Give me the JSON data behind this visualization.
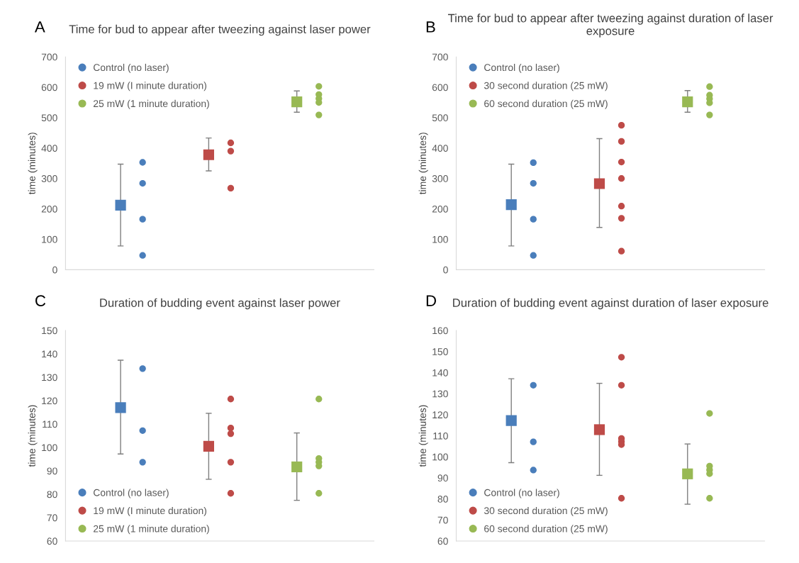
{
  "chart_data": [
    {
      "type": "scatter",
      "title": "Time for bud to appear after tweezing against laser power",
      "ylabel": "time (minutes)",
      "annotations": [
        "A"
      ],
      "categories": [
        null,
        null,
        null,
        null,
        null,
        null,
        null,
        null,
        null,
        null,
        null,
        null,
        null,
        null
      ],
      "ylim": [
        0,
        700
      ],
      "yticks": [
        0,
        100,
        200,
        300,
        400,
        500,
        600,
        700
      ],
      "tick_labels": "y",
      "legend": "top left",
      "series": [
        {
          "marker": "square",
          "colors": [
            null,
            null,
            "#4a7ebb",
            null,
            null,
            null,
            "#be4b48",
            null,
            null,
            null,
            "#98b954",
            null,
            null,
            null
          ],
          "values": [
            null,
            null,
            212,
            null,
            null,
            null,
            378,
            null,
            null,
            null,
            552,
            null,
            null,
            null
          ],
          "errors": [
            null,
            null,
            [
              78,
              347
            ],
            null,
            null,
            null,
            [
              325,
              433
            ],
            null,
            null,
            null,
            [
              518,
              588
            ],
            null,
            null,
            null
          ]
        },
        {
          "name": "Control (no laser)",
          "color": "#4a7ebb",
          "marker": "circle",
          "values": [
            null,
            null,
            null,
            353,
            null,
            null,
            null,
            null,
            null,
            null,
            null,
            null,
            null,
            null
          ]
        },
        {
          "color": "#4a7ebb",
          "marker": "circle",
          "values": [
            null,
            null,
            null,
            284,
            null,
            null,
            null,
            null,
            null,
            null,
            null,
            null,
            null,
            null
          ]
        },
        {
          "color": "#4a7ebb",
          "marker": "circle",
          "values": [
            null,
            null,
            null,
            166,
            null,
            null,
            null,
            null,
            null,
            null,
            null,
            null,
            null,
            null
          ]
        },
        {
          "color": "#4a7ebb",
          "marker": "circle",
          "values": [
            null,
            null,
            null,
            47,
            null,
            null,
            null,
            null,
            null,
            null,
            null,
            null,
            null,
            null
          ]
        },
        {
          "name": "19 mW (I minute duration)",
          "color": "#be4b48",
          "marker": "circle",
          "values": [
            null,
            null,
            null,
            null,
            null,
            null,
            null,
            417,
            null,
            null,
            null,
            null,
            null,
            null
          ]
        },
        {
          "color": "#be4b48",
          "marker": "circle",
          "values": [
            null,
            null,
            null,
            null,
            null,
            null,
            null,
            390,
            null,
            null,
            null,
            null,
            null,
            null
          ]
        },
        {
          "color": "#be4b48",
          "marker": "circle",
          "values": [
            null,
            null,
            null,
            null,
            null,
            null,
            null,
            268,
            null,
            null,
            null,
            null,
            null,
            null
          ]
        },
        {
          "name": "25 mW (1 minute duration)",
          "color": "#98b954",
          "marker": "circle",
          "values": [
            null,
            null,
            null,
            null,
            null,
            null,
            null,
            null,
            null,
            null,
            null,
            603,
            null,
            null
          ]
        },
        {
          "color": "#98b954",
          "marker": "circle",
          "values": [
            null,
            null,
            null,
            null,
            null,
            null,
            null,
            null,
            null,
            null,
            null,
            576,
            null,
            null
          ]
        },
        {
          "color": "#98b954",
          "marker": "circle",
          "values": [
            null,
            null,
            null,
            null,
            null,
            null,
            null,
            null,
            null,
            null,
            null,
            563,
            null,
            null
          ]
        },
        {
          "color": "#98b954",
          "marker": "circle",
          "values": [
            null,
            null,
            null,
            null,
            null,
            null,
            null,
            null,
            null,
            null,
            null,
            550,
            null,
            null
          ]
        },
        {
          "color": "#98b954",
          "marker": "circle",
          "values": [
            null,
            null,
            null,
            null,
            null,
            null,
            null,
            null,
            null,
            null,
            null,
            509,
            null,
            null
          ]
        }
      ]
    },
    {
      "type": "scatter",
      "title": "Time for bud to appear after tweezing against duration of laser exposure",
      "ylabel": "time (minutes)",
      "annotations": [
        "B"
      ],
      "categories": [
        null,
        null,
        null,
        null,
        null,
        null,
        null,
        null,
        null,
        null,
        null,
        null,
        null,
        null
      ],
      "ylim": [
        0,
        700
      ],
      "yticks": [
        0,
        100,
        200,
        300,
        400,
        500,
        600,
        700
      ],
      "tick_labels": "y",
      "legend": "top left",
      "series": [
        {
          "marker": "square",
          "colors": [
            null,
            null,
            "#4a7ebb",
            null,
            null,
            null,
            "#be4b48",
            null,
            null,
            null,
            "#98b954",
            null,
            null,
            null
          ],
          "values": [
            null,
            null,
            214,
            null,
            null,
            null,
            283,
            null,
            null,
            null,
            552,
            null,
            null,
            null
          ],
          "errors": [
            null,
            null,
            [
              78,
              347
            ],
            null,
            null,
            null,
            [
              139,
              431
            ],
            null,
            null,
            null,
            [
              518,
              589
            ],
            null,
            null,
            null
          ]
        },
        {
          "name": "Control (no laser)",
          "color": "#4a7ebb",
          "marker": "circle",
          "values": [
            null,
            null,
            null,
            352,
            null,
            null,
            null,
            null,
            null,
            null,
            null,
            null,
            null,
            null
          ]
        },
        {
          "color": "#4a7ebb",
          "marker": "circle",
          "values": [
            null,
            null,
            null,
            284,
            null,
            null,
            null,
            null,
            null,
            null,
            null,
            null,
            null,
            null
          ]
        },
        {
          "color": "#4a7ebb",
          "marker": "circle",
          "values": [
            null,
            null,
            null,
            166,
            null,
            null,
            null,
            null,
            null,
            null,
            null,
            null,
            null,
            null
          ]
        },
        {
          "color": "#4a7ebb",
          "marker": "circle",
          "values": [
            null,
            null,
            null,
            47,
            null,
            null,
            null,
            null,
            null,
            null,
            null,
            null,
            null,
            null
          ]
        },
        {
          "name": "30 second duration (25 mW)",
          "color": "#be4b48",
          "marker": "circle",
          "values": [
            null,
            null,
            null,
            null,
            null,
            null,
            null,
            475,
            null,
            null,
            null,
            null,
            null,
            null
          ]
        },
        {
          "color": "#be4b48",
          "marker": "circle",
          "values": [
            null,
            null,
            null,
            null,
            null,
            null,
            null,
            422,
            null,
            null,
            null,
            null,
            null,
            null
          ]
        },
        {
          "color": "#be4b48",
          "marker": "circle",
          "values": [
            null,
            null,
            null,
            null,
            null,
            null,
            null,
            354,
            null,
            null,
            null,
            null,
            null,
            null
          ]
        },
        {
          "color": "#be4b48",
          "marker": "circle",
          "values": [
            null,
            null,
            null,
            null,
            null,
            null,
            null,
            300,
            null,
            null,
            null,
            null,
            null,
            null
          ]
        },
        {
          "color": "#be4b48",
          "marker": "circle",
          "values": [
            null,
            null,
            null,
            null,
            null,
            null,
            null,
            209,
            null,
            null,
            null,
            null,
            null,
            null
          ]
        },
        {
          "color": "#be4b48",
          "marker": "circle",
          "values": [
            null,
            null,
            null,
            null,
            null,
            null,
            null,
            169,
            null,
            null,
            null,
            null,
            null,
            null
          ]
        },
        {
          "color": "#be4b48",
          "marker": "circle",
          "values": [
            null,
            null,
            null,
            null,
            null,
            null,
            null,
            61,
            null,
            null,
            null,
            null,
            null,
            null
          ]
        },
        {
          "name": "60 second duration (25 mW)",
          "color": "#98b954",
          "marker": "circle",
          "values": [
            null,
            null,
            null,
            null,
            null,
            null,
            null,
            null,
            null,
            null,
            null,
            602,
            null,
            null
          ]
        },
        {
          "color": "#98b954",
          "marker": "circle",
          "values": [
            null,
            null,
            null,
            null,
            null,
            null,
            null,
            null,
            null,
            null,
            null,
            574,
            null,
            null
          ]
        },
        {
          "color": "#98b954",
          "marker": "circle",
          "values": [
            null,
            null,
            null,
            null,
            null,
            null,
            null,
            null,
            null,
            null,
            null,
            562,
            null,
            null
          ]
        },
        {
          "color": "#98b954",
          "marker": "circle",
          "values": [
            null,
            null,
            null,
            null,
            null,
            null,
            null,
            null,
            null,
            null,
            null,
            549,
            null,
            null
          ]
        },
        {
          "color": "#98b954",
          "marker": "circle",
          "values": [
            null,
            null,
            null,
            null,
            null,
            null,
            null,
            null,
            null,
            null,
            null,
            509,
            null,
            null
          ]
        }
      ]
    },
    {
      "type": "scatter",
      "title": "Duration of budding event against laser power",
      "ylabel": "time (minutes)",
      "annotations": [
        "C"
      ],
      "categories": [
        null,
        null,
        null,
        null,
        null,
        null,
        null,
        null,
        null,
        null,
        null,
        null,
        null,
        null
      ],
      "ylim": [
        60,
        150
      ],
      "yticks": [
        60,
        70,
        80,
        90,
        100,
        110,
        120,
        130,
        140,
        150
      ],
      "tick_labels": "y",
      "legend": "bottom left",
      "series": [
        {
          "marker": "square",
          "colors": [
            null,
            null,
            "#4a7ebb",
            null,
            null,
            null,
            "#be4b48",
            null,
            null,
            null,
            "#98b954",
            null,
            null,
            null
          ],
          "values": [
            null,
            null,
            117.0,
            null,
            null,
            null,
            100.5,
            null,
            null,
            null,
            91.7,
            null,
            null,
            null
          ],
          "errors": [
            null,
            null,
            [
              97.2,
              137.3
            ],
            null,
            null,
            null,
            [
              86.4,
              114.6
            ],
            null,
            null,
            null,
            [
              77.4,
              106.2
            ],
            null,
            null,
            null
          ]
        },
        {
          "name": "Control (no laser)",
          "color": "#4a7ebb",
          "marker": "circle",
          "values": [
            null,
            null,
            null,
            133.7,
            null,
            null,
            null,
            null,
            null,
            null,
            null,
            null,
            null,
            null
          ]
        },
        {
          "color": "#4a7ebb",
          "marker": "circle",
          "values": [
            null,
            null,
            null,
            107.2,
            null,
            null,
            null,
            null,
            null,
            null,
            null,
            null,
            null,
            null
          ]
        },
        {
          "color": "#4a7ebb",
          "marker": "circle",
          "values": [
            null,
            null,
            null,
            93.7,
            null,
            null,
            null,
            null,
            null,
            null,
            null,
            null,
            null,
            null
          ]
        },
        {
          "name": "19 mW (I minute duration)",
          "color": "#be4b48",
          "marker": "circle",
          "values": [
            null,
            null,
            null,
            null,
            null,
            null,
            null,
            120.7,
            null,
            null,
            null,
            null,
            null,
            null
          ]
        },
        {
          "color": "#be4b48",
          "marker": "circle",
          "values": [
            null,
            null,
            null,
            null,
            null,
            null,
            null,
            108.3,
            null,
            null,
            null,
            null,
            null,
            null
          ]
        },
        {
          "color": "#be4b48",
          "marker": "circle",
          "values": [
            null,
            null,
            null,
            null,
            null,
            null,
            null,
            105.9,
            null,
            null,
            null,
            null,
            null,
            null
          ]
        },
        {
          "color": "#be4b48",
          "marker": "circle",
          "values": [
            null,
            null,
            null,
            null,
            null,
            null,
            null,
            93.7,
            null,
            null,
            null,
            null,
            null,
            null
          ]
        },
        {
          "color": "#be4b48",
          "marker": "circle",
          "values": [
            null,
            null,
            null,
            null,
            null,
            null,
            null,
            80.4,
            null,
            null,
            null,
            null,
            null,
            null
          ]
        },
        {
          "name": "25 mW (1 minute duration)",
          "color": "#98b954",
          "marker": "circle",
          "values": [
            null,
            null,
            null,
            null,
            null,
            null,
            null,
            null,
            null,
            null,
            null,
            120.7,
            null,
            null
          ]
        },
        {
          "color": "#98b954",
          "marker": "circle",
          "values": [
            null,
            null,
            null,
            null,
            null,
            null,
            null,
            null,
            null,
            null,
            null,
            95.3,
            null,
            null
          ]
        },
        {
          "color": "#98b954",
          "marker": "circle",
          "values": [
            null,
            null,
            null,
            null,
            null,
            null,
            null,
            null,
            null,
            null,
            null,
            93.7,
            null,
            null
          ]
        },
        {
          "color": "#98b954",
          "marker": "circle",
          "values": [
            null,
            null,
            null,
            null,
            null,
            null,
            null,
            null,
            null,
            null,
            null,
            92.1,
            null,
            null
          ]
        },
        {
          "color": "#98b954",
          "marker": "circle",
          "values": [
            null,
            null,
            null,
            null,
            null,
            null,
            null,
            null,
            null,
            null,
            null,
            80.4,
            null,
            null
          ]
        }
      ]
    },
    {
      "type": "scatter",
      "title": "Duration of budding event against duration of laser exposure",
      "ylabel": "time (minutes)",
      "annotations": [
        "D"
      ],
      "categories": [
        null,
        null,
        null,
        null,
        null,
        null,
        null,
        null,
        null,
        null,
        null,
        null,
        null,
        null
      ],
      "ylim": [
        60,
        160
      ],
      "yticks": [
        60,
        70,
        80,
        90,
        100,
        110,
        120,
        130,
        140,
        150,
        160
      ],
      "tick_labels": "y",
      "legend": "bottom left",
      "series": [
        {
          "marker": "square",
          "colors": [
            null,
            null,
            "#4a7ebb",
            null,
            null,
            null,
            "#be4b48",
            null,
            null,
            null,
            "#98b954",
            null,
            null,
            null
          ],
          "values": [
            null,
            null,
            117.2,
            null,
            null,
            null,
            112.9,
            null,
            null,
            null,
            91.9,
            null,
            null,
            null
          ],
          "errors": [
            null,
            null,
            [
              97.2,
              137.1
            ],
            null,
            null,
            null,
            [
              91.2,
              134.9
            ],
            null,
            null,
            null,
            [
              77.5,
              106.1
            ],
            null,
            null,
            null
          ]
        },
        {
          "name": "Control (no laser)",
          "color": "#4a7ebb",
          "marker": "circle",
          "values": [
            null,
            null,
            null,
            134.0,
            null,
            null,
            null,
            null,
            null,
            null,
            null,
            null,
            null,
            null
          ]
        },
        {
          "color": "#4a7ebb",
          "marker": "circle",
          "values": [
            null,
            null,
            null,
            107.1,
            null,
            null,
            null,
            null,
            null,
            null,
            null,
            null,
            null,
            null
          ]
        },
        {
          "color": "#4a7ebb",
          "marker": "circle",
          "values": [
            null,
            null,
            null,
            93.7,
            null,
            null,
            null,
            null,
            null,
            null,
            null,
            null,
            null,
            null
          ]
        },
        {
          "name": "30 second duration (25 mW)",
          "color": "#be4b48",
          "marker": "circle",
          "values": [
            null,
            null,
            null,
            null,
            null,
            null,
            null,
            147.3,
            null,
            null,
            null,
            null,
            null,
            null
          ]
        },
        {
          "color": "#be4b48",
          "marker": "circle",
          "values": [
            null,
            null,
            null,
            null,
            null,
            null,
            null,
            134.0,
            null,
            null,
            null,
            null,
            null,
            null
          ]
        },
        {
          "color": "#be4b48",
          "marker": "circle",
          "values": [
            null,
            null,
            null,
            null,
            null,
            null,
            null,
            108.7,
            null,
            null,
            null,
            null,
            null,
            null
          ]
        },
        {
          "color": "#be4b48",
          "marker": "circle",
          "values": [
            null,
            null,
            null,
            null,
            null,
            null,
            null,
            107.2,
            null,
            null,
            null,
            null,
            null,
            null
          ]
        },
        {
          "color": "#be4b48",
          "marker": "circle",
          "values": [
            null,
            null,
            null,
            null,
            null,
            null,
            null,
            105.8,
            null,
            null,
            null,
            null,
            null,
            null
          ]
        },
        {
          "color": "#be4b48",
          "marker": "circle",
          "values": [
            null,
            null,
            null,
            null,
            null,
            null,
            null,
            80.3,
            null,
            null,
            null,
            null,
            null,
            null
          ]
        },
        {
          "name": "60 second duration (25 mW)",
          "color": "#98b954",
          "marker": "circle",
          "values": [
            null,
            null,
            null,
            null,
            null,
            null,
            null,
            null,
            null,
            null,
            null,
            120.6,
            null,
            null
          ]
        },
        {
          "color": "#98b954",
          "marker": "circle",
          "values": [
            null,
            null,
            null,
            null,
            null,
            null,
            null,
            null,
            null,
            null,
            null,
            95.6,
            null,
            null
          ]
        },
        {
          "color": "#98b954",
          "marker": "circle",
          "values": [
            null,
            null,
            null,
            null,
            null,
            null,
            null,
            null,
            null,
            null,
            null,
            93.8,
            null,
            null
          ]
        },
        {
          "color": "#98b954",
          "marker": "circle",
          "values": [
            null,
            null,
            null,
            null,
            null,
            null,
            null,
            null,
            null,
            null,
            null,
            92.0,
            null,
            null
          ]
        },
        {
          "color": "#98b954",
          "marker": "circle",
          "values": [
            null,
            null,
            null,
            null,
            null,
            null,
            null,
            null,
            null,
            null,
            null,
            80.3,
            null,
            null
          ]
        }
      ]
    }
  ]
}
